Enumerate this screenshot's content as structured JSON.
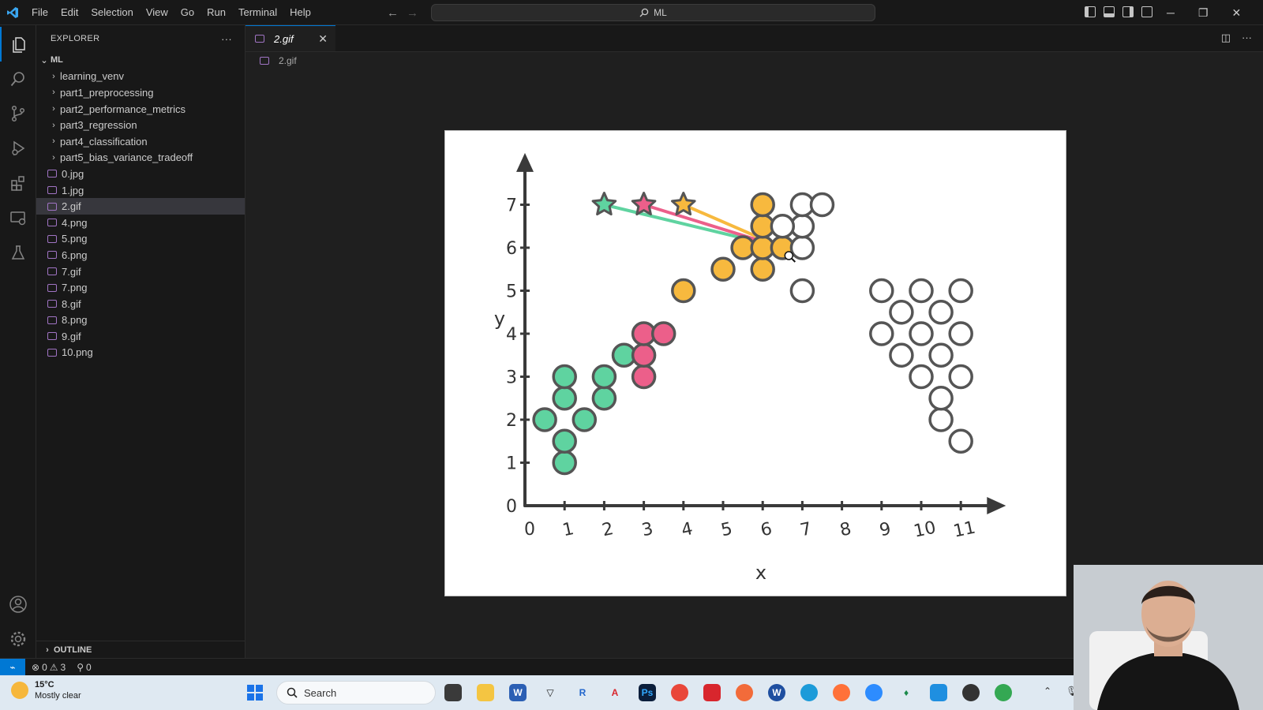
{
  "menu": [
    "File",
    "Edit",
    "Selection",
    "View",
    "Go",
    "Run",
    "Terminal",
    "Help"
  ],
  "command_center": "ML",
  "explorer": {
    "title": "EXPLORER",
    "more": "···",
    "root": "ML",
    "folders": [
      "learning_venv",
      "part1_preprocessing",
      "part2_performance_metrics",
      "part3_regression",
      "part4_classification",
      "part5_bias_variance_tradeoff"
    ],
    "files": [
      "0.jpg",
      "1.jpg",
      "2.gif",
      "4.png",
      "5.png",
      "6.png",
      "7.gif",
      "7.png",
      "8.gif",
      "8.png",
      "9.gif",
      "10.png"
    ],
    "selected_file": "2.gif",
    "outline": "OUTLINE"
  },
  "editor": {
    "tab": "2.gif",
    "breadcrumb": "2.gif"
  },
  "status": {
    "errors": "0",
    "warnings": "3",
    "ports": "0"
  },
  "taskbar": {
    "temperature": "15°C",
    "weather": "Mostly clear",
    "search": "Search"
  },
  "colors": {
    "green": "#5fd3a0",
    "pink": "#ec5f8a",
    "orange": "#f7b93e",
    "accent": "#0078d4"
  },
  "chart_data": {
    "type": "scatter",
    "xlabel": "x",
    "ylabel": "y",
    "x_ticks": [
      "0",
      "1",
      "2",
      "3",
      "4",
      "5",
      "6",
      "7",
      "8",
      "9",
      "10",
      "11"
    ],
    "y_ticks": [
      "0",
      "1",
      "2",
      "3",
      "4",
      "5",
      "6",
      "7"
    ],
    "xlim": [
      0,
      11.5
    ],
    "ylim": [
      0,
      7.8
    ],
    "series": [
      {
        "color": "#5fd3a0",
        "points": [
          [
            1,
            1
          ],
          [
            1,
            1.5
          ],
          [
            0.5,
            2
          ],
          [
            1.5,
            2
          ],
          [
            1,
            2.5
          ],
          [
            1,
            3
          ],
          [
            2,
            2.5
          ],
          [
            2,
            3
          ],
          [
            2.5,
            3.5
          ]
        ]
      },
      {
        "color": "#ec5f8a",
        "points": [
          [
            3,
            3
          ],
          [
            3,
            3.5
          ],
          [
            3,
            4
          ],
          [
            3.5,
            4
          ]
        ]
      },
      {
        "color": "#f7b93e",
        "points": [
          [
            4,
            5
          ],
          [
            5,
            5.5
          ],
          [
            5.5,
            6
          ],
          [
            6,
            5.5
          ],
          [
            6,
            6
          ],
          [
            6,
            6.5
          ],
          [
            6,
            7
          ],
          [
            6.5,
            6
          ]
        ]
      },
      {
        "color": "#ffffff",
        "points": [
          [
            7,
            5
          ],
          [
            7,
            6
          ],
          [
            7,
            6.5
          ],
          [
            6.5,
            6.5
          ],
          [
            7,
            7
          ],
          [
            7.5,
            7
          ],
          [
            9,
            4
          ],
          [
            9,
            5
          ],
          [
            9.5,
            3.5
          ],
          [
            9.5,
            4.5
          ],
          [
            10,
            3
          ],
          [
            10,
            4
          ],
          [
            10,
            5
          ],
          [
            10.5,
            2
          ],
          [
            10.5,
            2.5
          ],
          [
            10.5,
            3.5
          ],
          [
            10.5,
            4.5
          ],
          [
            11,
            1.5
          ],
          [
            11,
            3
          ],
          [
            11,
            4
          ],
          [
            11,
            5
          ]
        ]
      }
    ],
    "stars": [
      {
        "color": "#5fd3a0",
        "x": 2,
        "y": 7
      },
      {
        "color": "#ec5f8a",
        "x": 3,
        "y": 7
      },
      {
        "color": "#f7b93e",
        "x": 4,
        "y": 7
      }
    ],
    "links_to": [
      6.5,
      6
    ]
  }
}
